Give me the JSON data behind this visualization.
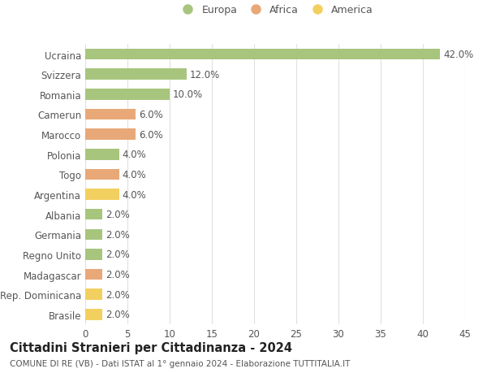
{
  "categories": [
    "Ucraina",
    "Svizzera",
    "Romania",
    "Camerun",
    "Marocco",
    "Polonia",
    "Togo",
    "Argentina",
    "Albania",
    "Germania",
    "Regno Unito",
    "Madagascar",
    "Rep. Dominicana",
    "Brasile"
  ],
  "values": [
    42.0,
    12.0,
    10.0,
    6.0,
    6.0,
    4.0,
    4.0,
    4.0,
    2.0,
    2.0,
    2.0,
    2.0,
    2.0,
    2.0
  ],
  "continents": [
    "Europa",
    "Europa",
    "Europa",
    "Africa",
    "Africa",
    "Europa",
    "Africa",
    "America",
    "Europa",
    "Europa",
    "Europa",
    "Africa",
    "America",
    "America"
  ],
  "colors": {
    "Europa": "#a8c57e",
    "Africa": "#e8a878",
    "America": "#f2d060"
  },
  "xlim": [
    0,
    45
  ],
  "xticks": [
    0,
    5,
    10,
    15,
    20,
    25,
    30,
    35,
    40,
    45
  ],
  "title": "Cittadini Stranieri per Cittadinanza - 2024",
  "subtitle": "COMUNE DI RE (VB) - Dati ISTAT al 1° gennaio 2024 - Elaborazione TUTTITALIA.IT",
  "background_color": "#ffffff",
  "grid_color": "#e0e0e0",
  "bar_height": 0.55,
  "label_fontsize": 8.5,
  "tick_fontsize": 8.5,
  "title_fontsize": 10.5,
  "subtitle_fontsize": 7.5,
  "legend_fontsize": 9,
  "text_color": "#555555",
  "title_color": "#222222"
}
